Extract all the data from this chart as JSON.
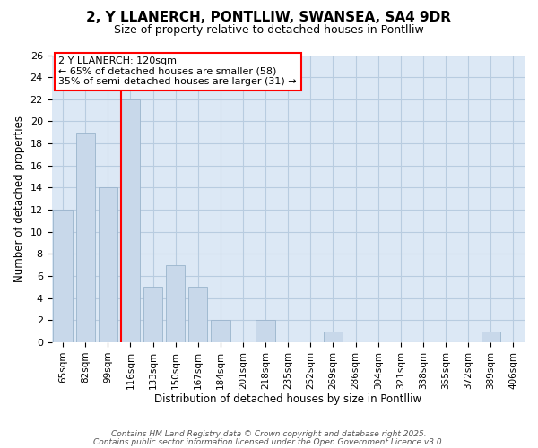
{
  "title": "2, Y LLANERCH, PONTLLIW, SWANSEA, SA4 9DR",
  "subtitle": "Size of property relative to detached houses in Pontlliw",
  "xlabel": "Distribution of detached houses by size in Pontlliw",
  "ylabel": "Number of detached properties",
  "bar_labels": [
    "65sqm",
    "82sqm",
    "99sqm",
    "116sqm",
    "133sqm",
    "150sqm",
    "167sqm",
    "184sqm",
    "201sqm",
    "218sqm",
    "235sqm",
    "252sqm",
    "269sqm",
    "286sqm",
    "304sqm",
    "321sqm",
    "338sqm",
    "355sqm",
    "372sqm",
    "389sqm",
    "406sqm"
  ],
  "bar_values": [
    12,
    19,
    14,
    22,
    5,
    7,
    5,
    2,
    0,
    2,
    0,
    0,
    1,
    0,
    0,
    0,
    0,
    0,
    0,
    1,
    0
  ],
  "bar_color": "#c8d8ea",
  "bar_edgecolor": "#9ab4cc",
  "vline_index": 3,
  "vline_color": "red",
  "annotation_text": "2 Y LLANERCH: 120sqm\n← 65% of detached houses are smaller (58)\n35% of semi-detached houses are larger (31) →",
  "annotation_box_edgecolor": "red",
  "annotation_box_facecolor": "white",
  "ylim": [
    0,
    26
  ],
  "yticks": [
    0,
    2,
    4,
    6,
    8,
    10,
    12,
    14,
    16,
    18,
    20,
    22,
    24,
    26
  ],
  "grid_color": "#b8cce0",
  "plot_bg_color": "#dce8f5",
  "fig_bg_color": "#ffffff",
  "footer_line1": "Contains HM Land Registry data © Crown copyright and database right 2025.",
  "footer_line2": "Contains public sector information licensed under the Open Government Licence v3.0."
}
